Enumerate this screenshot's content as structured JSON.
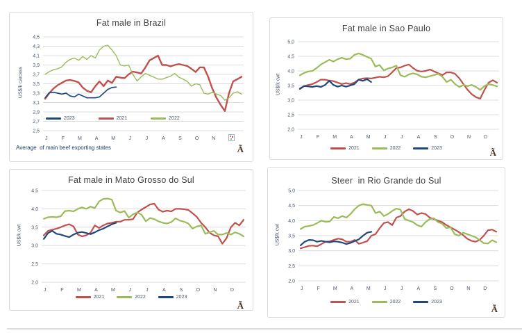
{
  "page": {
    "background": "#ffffff"
  },
  "colors": {
    "red": "#C0504D",
    "green": "#9BBB59",
    "blue": "#1F497D",
    "grid": "#DCDCDC",
    "box_border": "#D9D9D9",
    "title_text": "#3F3F3F",
    "axis_text": "#46576B",
    "footnote_text": "#17375E",
    "corner_glyph_brown": "#4A3424"
  },
  "months": [
    "J",
    "F",
    "M",
    "A",
    "M",
    "J",
    "J",
    "A",
    "S",
    "O",
    "N",
    "D"
  ],
  "chart_data": [
    {
      "type": "line",
      "title": "Fat male in Brazil",
      "ylabel": "US$/k carcass",
      "xlabel": "",
      "ylim": [
        2.5,
        4.5
      ],
      "yticks": [
        "4,5",
        "4,3",
        "4,1",
        "3,9",
        "3,7",
        "3,5",
        "3,3",
        "3,1",
        "2,9",
        "2,7",
        "2,5"
      ],
      "grid": "horizontal",
      "legend_position": "inside-bottom-left",
      "legend": [
        "2023",
        "2021",
        "2022"
      ],
      "footnote": "Average  of main beef exporting states",
      "corner_glyph": "Ã",
      "points_per_year": 48,
      "plot": [
        48,
        35,
        337,
        170
      ],
      "series": [
        {
          "name": "2021",
          "color_key": "red",
          "stroke_width": 2.4,
          "values": [
            3.18,
            3.3,
            3.4,
            3.47,
            3.52,
            3.57,
            3.58,
            3.56,
            3.53,
            3.42,
            3.35,
            3.32,
            3.45,
            3.55,
            3.45,
            3.57,
            3.52,
            3.65,
            3.63,
            3.62,
            3.7,
            3.76,
            3.74,
            3.72,
            3.85,
            4.0,
            4.05,
            4.1,
            3.9,
            3.9,
            3.87,
            3.9,
            3.92,
            3.9,
            3.88,
            3.82,
            3.75,
            3.85,
            3.85,
            3.65,
            3.4,
            3.2,
            3.05,
            2.92,
            3.3,
            3.55,
            3.6,
            3.65
          ]
        },
        {
          "name": "2022",
          "color_key": "green",
          "stroke_width": 1.4,
          "values": [
            3.7,
            3.76,
            3.8,
            3.82,
            3.86,
            3.96,
            4.02,
            4.05,
            4.0,
            4.08,
            4.02,
            4.1,
            4.05,
            4.22,
            4.3,
            4.32,
            4.22,
            4.1,
            3.9,
            3.88,
            3.9,
            3.7,
            3.56,
            3.65,
            3.72,
            3.68,
            3.64,
            3.6,
            3.6,
            3.63,
            3.66,
            3.72,
            3.64,
            3.6,
            3.55,
            3.45,
            3.5,
            3.48,
            3.3,
            3.28,
            3.32,
            3.28,
            3.25,
            3.15,
            3.2,
            3.3,
            3.33,
            3.28
          ]
        },
        {
          "name": "2023",
          "color_key": "blue",
          "stroke_width": 1.7,
          "values": [
            3.2,
            3.31,
            3.32,
            3.3,
            3.28,
            3.3,
            3.24,
            3.22,
            3.28,
            3.24,
            3.2,
            3.2,
            3.2,
            3.22,
            3.3,
            3.38,
            3.42,
            3.43
          ]
        }
      ]
    },
    {
      "type": "line",
      "title": "Fat male in Sao Paulo",
      "ylabel": "US$/k cwt",
      "xlabel": "",
      "ylim": [
        2.0,
        5.0
      ],
      "yticks": [
        "5,0",
        "4,5",
        "4,0",
        "3,5",
        "3,0",
        "2,5",
        "2,0"
      ],
      "grid": "horizontal",
      "legend_position": "below-center",
      "legend": [
        "2021",
        "2022",
        "2023"
      ],
      "corner_glyph": "Ã",
      "points_per_year": 48,
      "plot": [
        40,
        34,
        330,
        160
      ],
      "series": [
        {
          "name": "2021",
          "color_key": "red",
          "stroke_width": 2.2,
          "values": [
            3.4,
            3.48,
            3.52,
            3.55,
            3.62,
            3.7,
            3.7,
            3.67,
            3.65,
            3.6,
            3.55,
            3.58,
            3.55,
            3.6,
            3.7,
            3.74,
            3.75,
            3.74,
            3.77,
            3.8,
            3.78,
            3.82,
            3.95,
            4.1,
            4.12,
            4.18,
            4.22,
            4.1,
            4.0,
            3.98,
            4.0,
            4.05,
            3.98,
            3.92,
            3.86,
            3.95,
            3.95,
            3.9,
            3.75,
            3.55,
            3.35,
            3.2,
            3.1,
            3.05,
            3.35,
            3.6,
            3.68,
            3.6
          ]
        },
        {
          "name": "2022",
          "color_key": "green",
          "stroke_width": 2.2,
          "values": [
            3.85,
            3.93,
            3.98,
            4.0,
            4.1,
            4.22,
            4.3,
            4.38,
            4.32,
            4.4,
            4.45,
            4.4,
            4.42,
            4.55,
            4.6,
            4.55,
            4.48,
            4.42,
            4.15,
            4.2,
            4.02,
            4.08,
            4.12,
            4.18,
            3.85,
            3.8,
            3.88,
            3.92,
            3.88,
            3.8,
            3.78,
            3.82,
            3.86,
            3.9,
            3.8,
            3.62,
            3.7,
            3.55,
            3.45,
            3.52,
            3.48,
            3.52,
            3.45,
            3.35,
            3.48,
            3.55,
            3.52,
            3.47
          ]
        },
        {
          "name": "2023",
          "color_key": "blue",
          "stroke_width": 2.2,
          "values": [
            3.38,
            3.48,
            3.47,
            3.45,
            3.48,
            3.45,
            3.52,
            3.66,
            3.52,
            3.46,
            3.5,
            3.46,
            3.5,
            3.55,
            3.7,
            3.66,
            3.72,
            3.62
          ]
        }
      ]
    },
    {
      "type": "line",
      "title": "Fat male in Mato Grosso do Sul",
      "ylabel": "US$/k cwt",
      "xlabel": "",
      "ylim": [
        2.0,
        4.5
      ],
      "yticks": [
        "4,5",
        "4,0",
        "3,5",
        "3,0",
        "2,5",
        "2,0"
      ],
      "grid": "horizontal",
      "legend_position": "below-center",
      "legend": [
        "2021",
        "2022",
        "2023"
      ],
      "corner_glyph": "Ã",
      "points_per_year": 48,
      "plot": [
        46,
        30,
        340,
        162
      ],
      "series": [
        {
          "name": "2021",
          "color_key": "red",
          "stroke_width": 2.2,
          "values": [
            3.28,
            3.4,
            3.43,
            3.46,
            3.5,
            3.55,
            3.58,
            3.52,
            3.3,
            3.25,
            3.28,
            3.35,
            3.55,
            3.48,
            3.55,
            3.6,
            3.62,
            3.65,
            3.65,
            3.7,
            3.7,
            3.72,
            3.9,
            3.98,
            4.05,
            4.12,
            4.14,
            3.98,
            3.92,
            3.95,
            3.93,
            4.0,
            4.0,
            3.99,
            3.97,
            3.88,
            3.78,
            3.62,
            3.5,
            3.35,
            3.28,
            3.25,
            3.05,
            3.2,
            3.5,
            3.62,
            3.55,
            3.7
          ]
        },
        {
          "name": "2022",
          "color_key": "green",
          "stroke_width": 2.2,
          "values": [
            3.73,
            3.77,
            3.78,
            3.77,
            3.8,
            3.94,
            3.95,
            3.93,
            4.0,
            4.04,
            4.0,
            4.06,
            4.02,
            4.2,
            4.27,
            4.28,
            4.25,
            3.95,
            3.9,
            3.94,
            3.76,
            3.85,
            3.9,
            3.84,
            3.66,
            3.75,
            3.72,
            3.66,
            3.62,
            3.6,
            3.64,
            3.74,
            3.68,
            3.65,
            3.6,
            3.46,
            3.52,
            3.55,
            3.32,
            3.36,
            3.4,
            3.3,
            3.3,
            3.34,
            3.3,
            3.36,
            3.32,
            3.25
          ]
        },
        {
          "name": "2023",
          "color_key": "blue",
          "stroke_width": 2.2,
          "values": [
            3.18,
            3.34,
            3.4,
            3.32,
            3.3,
            3.26,
            3.23,
            3.3,
            3.35,
            3.37,
            3.34,
            3.31,
            3.36,
            3.42,
            3.46,
            3.52,
            3.58,
            3.62
          ]
        }
      ]
    },
    {
      "type": "line",
      "title": "Steer  in Rio Grande do Sul",
      "ylabel": "US$/k cwt",
      "xlabel": "",
      "ylim": [
        2.0,
        5.0
      ],
      "yticks": [
        "5,0",
        "4,5",
        "4,0",
        "3,5",
        "3,0",
        "2,5",
        "2,0"
      ],
      "grid": "horizontal",
      "legend_position": "below-center",
      "legend": [
        "2021",
        "2022",
        "2023"
      ],
      "corner_glyph": "Ã",
      "points_per_year": 48,
      "plot": [
        44,
        33,
        332,
        163
      ],
      "series": [
        {
          "name": "2021",
          "color_key": "red",
          "stroke_width": 2.2,
          "values": [
            3.08,
            3.12,
            3.16,
            3.17,
            3.15,
            3.22,
            3.3,
            3.31,
            3.36,
            3.4,
            3.38,
            3.3,
            3.3,
            3.36,
            3.23,
            3.27,
            3.32,
            3.5,
            3.55,
            3.75,
            3.92,
            3.95,
            3.85,
            4.1,
            4.15,
            4.3,
            4.38,
            4.32,
            4.2,
            4.25,
            4.22,
            4.1,
            4.05,
            4.0,
            3.95,
            3.85,
            3.78,
            3.7,
            3.62,
            3.52,
            3.4,
            3.33,
            3.3,
            3.36,
            3.5,
            3.68,
            3.7,
            3.63
          ]
        },
        {
          "name": "2022",
          "color_key": "green",
          "stroke_width": 2.2,
          "values": [
            3.72,
            3.8,
            3.82,
            3.85,
            3.92,
            4.0,
            3.96,
            3.97,
            4.12,
            4.08,
            4.15,
            4.1,
            4.22,
            4.38,
            4.5,
            4.55,
            4.52,
            4.5,
            4.25,
            4.3,
            4.15,
            4.22,
            4.32,
            4.4,
            4.36,
            4.05,
            4.0,
            3.95,
            3.85,
            3.8,
            3.95,
            4.05,
            4.08,
            3.95,
            3.9,
            3.75,
            3.78,
            3.55,
            3.5,
            3.6,
            3.55,
            3.5,
            3.45,
            3.35,
            3.25,
            3.24,
            3.35,
            3.28
          ]
        },
        {
          "name": "2023",
          "color_key": "blue",
          "stroke_width": 2.2,
          "values": [
            3.18,
            3.3,
            3.36,
            3.35,
            3.3,
            3.33,
            3.3,
            3.28,
            3.31,
            3.3,
            3.27,
            3.22,
            3.26,
            3.32,
            3.38,
            3.5,
            3.6,
            3.63
          ]
        }
      ]
    }
  ]
}
